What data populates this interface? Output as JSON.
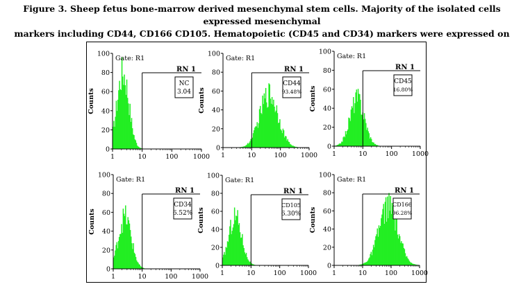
{
  "figure": {
    "caption_line1": "Figure 3. Sheep fetus bone-marrow derived mesenchymal stem cells. Majority of the isolated cells expressed mesenchymal",
    "caption_line2": "markers including CD44, CD166 CD105. Hematopoietic (CD45 and CD34) markers were expressed on the isolated cells."
  },
  "colors": {
    "histogram_fill": "#22ee22",
    "axis": "#000000",
    "background": "#ffffff"
  },
  "chart_data": [
    {
      "type": "area",
      "gate": "Gate: R1",
      "region_label": "RN 1",
      "marker": "NC",
      "percent": "3.04",
      "xlabel": "",
      "ylabel": "Counts",
      "xscale": "log",
      "xlim": [
        1,
        1000
      ],
      "ylim": [
        0,
        100
      ],
      "xticks": [
        "1",
        "10",
        "100",
        "1000"
      ],
      "yticks": [
        "0",
        "20",
        "40",
        "60",
        "80",
        "100"
      ],
      "peak_log10_x": 0.35,
      "peak_counts": 80,
      "spread_log10": 0.2
    },
    {
      "type": "area",
      "gate": "Gate: R1",
      "region_label": "RN 1",
      "marker": "CD44",
      "percent": "93.48%",
      "xlabel": "",
      "ylabel": "Counts",
      "xscale": "log",
      "xlim": [
        1,
        1000
      ],
      "ylim": [
        0,
        100
      ],
      "xticks": [
        "1",
        "10",
        "100",
        "1000"
      ],
      "yticks": [
        "0",
        "20",
        "40",
        "60",
        "80",
        "100"
      ],
      "peak_log10_x": 1.6,
      "peak_counts": 57,
      "spread_log10": 0.32
    },
    {
      "type": "area",
      "gate": "Gate: R1",
      "region_label": "RN 1",
      "marker": "CD45",
      "percent": "16.80%",
      "xlabel": "",
      "ylabel": "Counts",
      "xscale": "log",
      "xlim": [
        1,
        1000
      ],
      "ylim": [
        0,
        100
      ],
      "xticks": [
        "1",
        "10",
        "100",
        "1000"
      ],
      "yticks": [
        "0",
        "20",
        "40",
        "60",
        "80",
        "100"
      ],
      "peak_log10_x": 0.8,
      "peak_counts": 50,
      "spread_log10": 0.25
    },
    {
      "type": "area",
      "gate": "Gate: R1",
      "region_label": "RN 1",
      "marker": "CD34",
      "percent": "6.52%",
      "xlabel": "",
      "ylabel": "Counts",
      "xscale": "log",
      "xlim": [
        1,
        1000
      ],
      "ylim": [
        0,
        100
      ],
      "xticks": [
        "1",
        "10",
        "100",
        "1000"
      ],
      "yticks": [
        "0",
        "20",
        "40",
        "60",
        "80",
        "100"
      ],
      "peak_log10_x": 0.4,
      "peak_counts": 55,
      "spread_log10": 0.22
    },
    {
      "type": "area",
      "gate": "Gate: R1",
      "region_label": "RN 1",
      "marker": "CD105",
      "percent": "6.30%",
      "xlabel": "",
      "ylabel": "Counts",
      "xscale": "log",
      "xlim": [
        1,
        1000
      ],
      "ylim": [
        0,
        100
      ],
      "xticks": [
        "1",
        "10",
        "100",
        "1000"
      ],
      "yticks": [
        "0",
        "20",
        "40",
        "60",
        "80",
        "100"
      ],
      "peak_log10_x": 0.45,
      "peak_counts": 55,
      "spread_log10": 0.22
    },
    {
      "type": "area",
      "gate": "Gate: R1",
      "region_label": "RN 1",
      "marker": "CD166",
      "percent": "96.28%",
      "xlabel": "",
      "ylabel": "Counts",
      "xscale": "log",
      "xlim": [
        1,
        1000
      ],
      "ylim": [
        0,
        100
      ],
      "xticks": [
        "1",
        "10",
        "100",
        "1000"
      ],
      "yticks": [
        "0",
        "20",
        "40",
        "60",
        "80",
        "100"
      ],
      "peak_log10_x": 1.9,
      "peak_counts": 65,
      "spread_log10": 0.33
    }
  ]
}
